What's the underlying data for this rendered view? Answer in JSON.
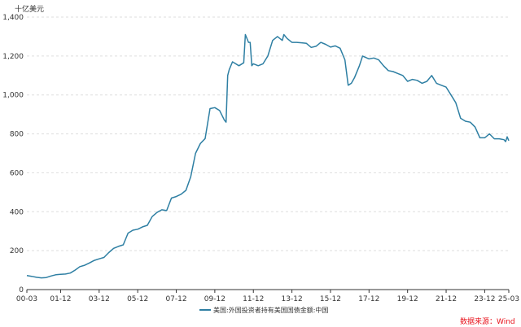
{
  "chart_data": {
    "type": "line",
    "title": "",
    "xlabel": "",
    "ylabel": "十亿美元",
    "ylim": [
      0,
      1400
    ],
    "yticks": [
      0,
      200,
      400,
      600,
      800,
      1000,
      1200,
      1400
    ],
    "ytick_labels": [
      "0",
      "200",
      "400",
      "600",
      "800",
      "1,000",
      "1,200",
      "1,400"
    ],
    "xlim": [
      "2000-03",
      "2025-03"
    ],
    "xtick_labels": [
      "00-03",
      "01-12",
      "03-12",
      "05-12",
      "07-12",
      "09-12",
      "11-12",
      "13-12",
      "15-12",
      "17-12",
      "19-12",
      "21-12",
      "23-12",
      "25-03"
    ],
    "grid": "horizontal dashed",
    "legend_position": "bottom-center",
    "source": "数据来源：Wind",
    "series": [
      {
        "name": "美国:外国投资者持有美国国债金额:中国",
        "color": "#2e7fa3",
        "points": [
          [
            "2000-03",
            72
          ],
          [
            "2000-06",
            68
          ],
          [
            "2000-09",
            63
          ],
          [
            "2000-12",
            60
          ],
          [
            "2001-03",
            62
          ],
          [
            "2001-06",
            70
          ],
          [
            "2001-09",
            76
          ],
          [
            "2001-12",
            78
          ],
          [
            "2002-03",
            80
          ],
          [
            "2002-06",
            85
          ],
          [
            "2002-09",
            100
          ],
          [
            "2002-12",
            118
          ],
          [
            "2003-03",
            125
          ],
          [
            "2003-06",
            137
          ],
          [
            "2003-09",
            150
          ],
          [
            "2003-12",
            158
          ],
          [
            "2004-03",
            165
          ],
          [
            "2004-06",
            190
          ],
          [
            "2004-09",
            212
          ],
          [
            "2004-12",
            222
          ],
          [
            "2005-03",
            230
          ],
          [
            "2005-06",
            290
          ],
          [
            "2005-09",
            305
          ],
          [
            "2005-12",
            310
          ],
          [
            "2006-03",
            322
          ],
          [
            "2006-06",
            330
          ],
          [
            "2006-09",
            375
          ],
          [
            "2006-12",
            396
          ],
          [
            "2007-03",
            410
          ],
          [
            "2007-06",
            406
          ],
          [
            "2007-09",
            470
          ],
          [
            "2007-12",
            478
          ],
          [
            "2008-03",
            490
          ],
          [
            "2008-06",
            510
          ],
          [
            "2008-09",
            580
          ],
          [
            "2008-12",
            700
          ],
          [
            "2009-03",
            750
          ],
          [
            "2009-06",
            776
          ],
          [
            "2009-09",
            930
          ],
          [
            "2009-12",
            935
          ],
          [
            "2010-03",
            920
          ],
          [
            "2010-06",
            870
          ],
          [
            "2010-07",
            860
          ],
          [
            "2010-08",
            1100
          ],
          [
            "2010-09",
            1130
          ],
          [
            "2010-11",
            1170
          ],
          [
            "2011-03",
            1150
          ],
          [
            "2011-06",
            1165
          ],
          [
            "2011-07",
            1310
          ],
          [
            "2011-09",
            1270
          ],
          [
            "2011-10",
            1270
          ],
          [
            "2011-11",
            1150
          ],
          [
            "2011-12",
            1160
          ],
          [
            "2012-03",
            1150
          ],
          [
            "2012-06",
            1160
          ],
          [
            "2012-09",
            1200
          ],
          [
            "2012-12",
            1280
          ],
          [
            "2013-03",
            1300
          ],
          [
            "2013-06",
            1280
          ],
          [
            "2013-07",
            1310
          ],
          [
            "2013-09",
            1290
          ],
          [
            "2013-12",
            1270
          ],
          [
            "2014-03",
            1270
          ],
          [
            "2014-06",
            1268
          ],
          [
            "2014-09",
            1265
          ],
          [
            "2014-12",
            1244
          ],
          [
            "2015-03",
            1250
          ],
          [
            "2015-06",
            1270
          ],
          [
            "2015-09",
            1260
          ],
          [
            "2015-12",
            1246
          ],
          [
            "2016-03",
            1252
          ],
          [
            "2016-06",
            1240
          ],
          [
            "2016-09",
            1180
          ],
          [
            "2016-11",
            1050
          ],
          [
            "2017-01",
            1060
          ],
          [
            "2017-03",
            1090
          ],
          [
            "2017-06",
            1150
          ],
          [
            "2017-08",
            1200
          ],
          [
            "2017-12",
            1185
          ],
          [
            "2018-03",
            1190
          ],
          [
            "2018-06",
            1180
          ],
          [
            "2018-09",
            1150
          ],
          [
            "2018-12",
            1125
          ],
          [
            "2019-03",
            1120
          ],
          [
            "2019-06",
            1110
          ],
          [
            "2019-09",
            1100
          ],
          [
            "2019-12",
            1070
          ],
          [
            "2020-03",
            1080
          ],
          [
            "2020-06",
            1075
          ],
          [
            "2020-09",
            1060
          ],
          [
            "2020-12",
            1070
          ],
          [
            "2021-03",
            1100
          ],
          [
            "2021-06",
            1060
          ],
          [
            "2021-09",
            1050
          ],
          [
            "2021-12",
            1040
          ],
          [
            "2022-03",
            1000
          ],
          [
            "2022-06",
            960
          ],
          [
            "2022-09",
            880
          ],
          [
            "2022-12",
            865
          ],
          [
            "2023-03",
            860
          ],
          [
            "2023-06",
            835
          ],
          [
            "2023-09",
            780
          ],
          [
            "2023-12",
            780
          ],
          [
            "2024-03",
            800
          ],
          [
            "2024-06",
            775
          ],
          [
            "2024-09",
            775
          ],
          [
            "2024-12",
            770
          ],
          [
            "2025-01",
            760
          ],
          [
            "2025-02",
            785
          ],
          [
            "2025-03",
            765
          ]
        ]
      }
    ]
  }
}
